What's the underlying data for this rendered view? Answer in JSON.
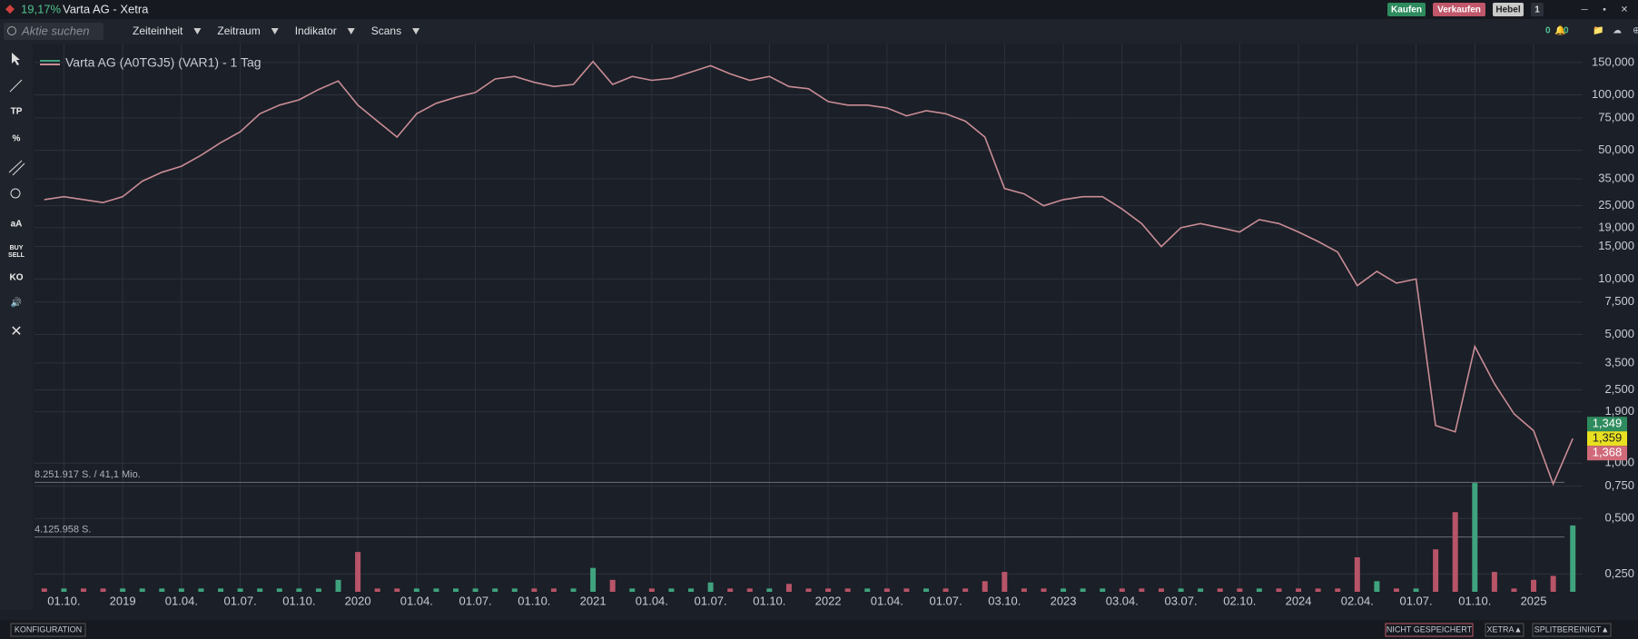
{
  "title_bar": {
    "change": "19,17%",
    "title": "Varta AG - Xetra",
    "buttons": [
      "Kaufen",
      "Verkaufen",
      "Hebel",
      "1"
    ]
  },
  "toolbar": {
    "search_placeholder": "Aktie suchen",
    "menus": [
      "Zeiteinheit",
      "Zeitraum",
      "Indikator",
      "Scans"
    ],
    "alerts": [
      "0",
      "0"
    ]
  },
  "side_tools": [
    "TP",
    "aA",
    "BUY",
    "SELL",
    "KO"
  ],
  "status_bar": {
    "left": "KONFIGURATION",
    "right": [
      "NICHT GESPEICHERT",
      "XETRA▲",
      "SPLITBEREINIGT▲"
    ]
  },
  "chart_data": {
    "type": "line",
    "log_scale": true,
    "grid": true,
    "xlim": [
      -0.5,
      78.5
    ],
    "ylim": [
      0.2,
      190
    ],
    "xticks": [
      {
        "value": 1,
        "label": "01.10."
      },
      {
        "value": 4,
        "label": "2019"
      },
      {
        "value": 7,
        "label": "01.04."
      },
      {
        "value": 10,
        "label": "01.07."
      },
      {
        "value": 13,
        "label": "01.10."
      },
      {
        "value": 16,
        "label": "2020"
      },
      {
        "value": 19,
        "label": "01.04."
      },
      {
        "value": 22,
        "label": "01.07."
      },
      {
        "value": 25,
        "label": "01.10."
      },
      {
        "value": 28,
        "label": "2021"
      },
      {
        "value": 31,
        "label": "01.04."
      },
      {
        "value": 34,
        "label": "01.07."
      },
      {
        "value": 37,
        "label": "01.10."
      },
      {
        "value": 40,
        "label": "2022"
      },
      {
        "value": 43,
        "label": "01.04."
      },
      {
        "value": 46,
        "label": "01.07."
      },
      {
        "value": 49,
        "label": "03.10."
      },
      {
        "value": 52,
        "label": "2023"
      },
      {
        "value": 55,
        "label": "03.04."
      },
      {
        "value": 58,
        "label": "03.07."
      },
      {
        "value": 61,
        "label": "02.10."
      },
      {
        "value": 64,
        "label": "2024"
      },
      {
        "value": 67,
        "label": "02.04."
      },
      {
        "value": 70,
        "label": "01.07."
      },
      {
        "value": 73,
        "label": "01.10."
      },
      {
        "value": 76,
        "label": "2025"
      }
    ],
    "yticks": [
      {
        "value": 150,
        "label": "150,000"
      },
      {
        "value": 100,
        "label": "100,000"
      },
      {
        "value": 75,
        "label": "75,000"
      },
      {
        "value": 50,
        "label": "50,000"
      },
      {
        "value": 35,
        "label": "35,000"
      },
      {
        "value": 25,
        "label": "25,000"
      },
      {
        "value": 19,
        "label": "19,000"
      },
      {
        "value": 15,
        "label": "15,000"
      },
      {
        "value": 10,
        "label": "10,000"
      },
      {
        "value": 7.5,
        "label": "7,500"
      },
      {
        "value": 5,
        "label": "5,000"
      },
      {
        "value": 3.5,
        "label": "3,500"
      },
      {
        "value": 2.5,
        "label": "2,500"
      },
      {
        "value": 1.9,
        "label": "1,900"
      },
      {
        "value": 1,
        "label": "1,000"
      },
      {
        "value": 0.75,
        "label": "0,750"
      },
      {
        "value": 0.5,
        "label": "0,500"
      },
      {
        "value": 0.25,
        "label": "0,250"
      }
    ],
    "series": [
      {
        "name": "Varta AG (A0TGJ5) (VAR1) - 1 Tag",
        "color": "#c98c95",
        "up_color": "#3fa37e",
        "values": [
          27,
          28,
          27,
          26,
          28,
          34,
          38,
          41,
          47,
          55,
          63,
          79,
          88,
          94,
          107,
          119,
          88,
          72,
          59,
          79,
          90,
          97,
          103,
          122,
          126,
          117,
          111,
          114,
          152,
          114,
          126,
          120,
          123,
          133,
          144,
          130,
          120,
          126,
          111,
          108,
          92,
          88,
          88,
          85,
          77,
          82,
          79,
          72,
          59,
          31,
          29,
          25,
          27,
          28,
          28,
          24,
          20,
          15,
          19,
          20,
          19,
          18,
          21,
          20,
          18,
          16,
          14,
          9.2,
          11,
          9.5,
          10,
          1.6,
          1.48,
          4.3,
          2.7,
          1.85,
          1.5,
          0.77,
          1.36
        ]
      }
    ],
    "volume": {
      "color": "#b85468",
      "ylim": [
        0,
        41300000
      ],
      "values": [
        250000,
        250000,
        250000,
        250000,
        250000,
        250000,
        250000,
        250000,
        250000,
        250000,
        250000,
        250000,
        250000,
        250000,
        250000,
        900000,
        3000000,
        250000,
        250000,
        250000,
        250000,
        250000,
        250000,
        250000,
        250000,
        250000,
        250000,
        250000,
        1800000,
        900000,
        250000,
        250000,
        250000,
        250000,
        700000,
        250000,
        250000,
        250000,
        600000,
        250000,
        250000,
        250000,
        250000,
        250000,
        250000,
        250000,
        250000,
        250000,
        800000,
        1500000,
        250000,
        250000,
        250000,
        250000,
        250000,
        250000,
        250000,
        250000,
        250000,
        250000,
        250000,
        250000,
        250000,
        250000,
        250000,
        250000,
        250000,
        2600000,
        800000,
        250000,
        250000,
        3200000,
        6000000,
        8200000,
        1500000,
        250000,
        900000,
        1200000,
        5000000
      ],
      "ticks": [
        {
          "value": 8251917,
          "label": "8.251.917 S. / 41,1 Mio."
        },
        {
          "value": 4125958,
          "label": "4.125.958 S."
        }
      ]
    },
    "price_labels": [
      {
        "value": 1.349,
        "label": "1,349",
        "color": "#2e8b5e"
      },
      {
        "value": 1.359,
        "label": "1,359",
        "color": "#e8e020"
      },
      {
        "value": 1.368,
        "label": "1,368",
        "color": "#d06a7a"
      }
    ]
  }
}
